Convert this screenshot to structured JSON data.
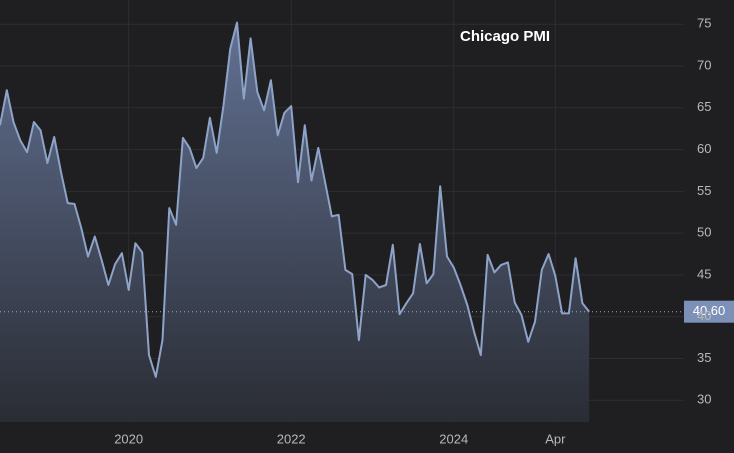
{
  "chart_data": {
    "type": "area",
    "title": "Chicago PMI",
    "x": [
      "2018-06",
      "2018-07",
      "2018-08",
      "2018-09",
      "2018-10",
      "2018-11",
      "2018-12",
      "2019-01",
      "2019-02",
      "2019-03",
      "2019-04",
      "2019-05",
      "2019-06",
      "2019-07",
      "2019-08",
      "2019-09",
      "2019-10",
      "2019-11",
      "2019-12",
      "2020-01",
      "2020-02",
      "2020-03",
      "2020-04",
      "2020-05",
      "2020-06",
      "2020-07",
      "2020-08",
      "2020-09",
      "2020-10",
      "2020-11",
      "2020-12",
      "2021-01",
      "2021-02",
      "2021-03",
      "2021-04",
      "2021-05",
      "2021-06",
      "2021-07",
      "2021-08",
      "2021-09",
      "2021-10",
      "2021-11",
      "2021-12",
      "2022-01",
      "2022-02",
      "2022-03",
      "2022-04",
      "2022-05",
      "2022-06",
      "2022-07",
      "2022-08",
      "2022-09",
      "2022-10",
      "2022-11",
      "2022-12",
      "2023-01",
      "2023-02",
      "2023-03",
      "2023-04",
      "2023-05",
      "2023-06",
      "2023-07",
      "2023-08",
      "2023-09",
      "2023-10",
      "2023-11",
      "2023-12",
      "2024-01",
      "2024-02",
      "2024-03",
      "2024-04",
      "2024-05",
      "2024-06",
      "2024-07",
      "2024-08",
      "2024-09",
      "2024-10",
      "2024-11",
      "2024-12",
      "2025-01",
      "2025-02",
      "2025-03",
      "2025-04",
      "2025-05",
      "2025-06",
      "2025-07",
      "2025-08",
      "2025-09"
    ],
    "values": [
      62.9,
      67.1,
      63.3,
      61.1,
      59.7,
      63.3,
      62.3,
      58.4,
      61.5,
      57.3,
      53.6,
      53.5,
      50.6,
      47.2,
      49.6,
      46.8,
      43.8,
      46.3,
      47.6,
      43.2,
      48.8,
      47.7,
      35.4,
      32.8,
      37.2,
      53.0,
      51.0,
      61.4,
      60.2,
      57.8,
      59.0,
      63.8,
      59.6,
      65.3,
      72.1,
      75.2,
      66.1,
      73.3,
      66.9,
      64.7,
      68.3,
      61.7,
      64.4,
      65.2,
      56.1,
      62.9,
      56.3,
      60.2,
      56.1,
      52.0,
      52.2,
      45.6,
      45.1,
      37.2,
      45.0,
      44.4,
      43.5,
      43.8,
      48.6,
      40.3,
      41.6,
      42.8,
      48.7,
      44.0,
      45.1,
      55.6,
      47.2,
      45.9,
      43.8,
      41.4,
      38.2,
      35.4,
      47.4,
      45.3,
      46.2,
      46.5,
      41.7,
      40.2,
      37.0,
      39.4,
      45.6,
      47.5,
      44.9,
      40.4,
      40.4,
      47.0,
      41.6,
      40.6
    ],
    "last_label": "40.60",
    "color": "#8ea3c8",
    "xlim": [
      "2018-06",
      "2026-11"
    ],
    "xticks": [
      {
        "value": "2020-01",
        "label": "2020"
      },
      {
        "value": "2022-01",
        "label": "2022"
      },
      {
        "value": "2024-01",
        "label": "2024"
      },
      {
        "value": "2025-04",
        "label": "Apr"
      }
    ],
    "ylim": [
      27.4,
      77.9
    ],
    "yticks": [
      30,
      35,
      40,
      45,
      50,
      55,
      60,
      65,
      70,
      75
    ],
    "grid": true
  }
}
